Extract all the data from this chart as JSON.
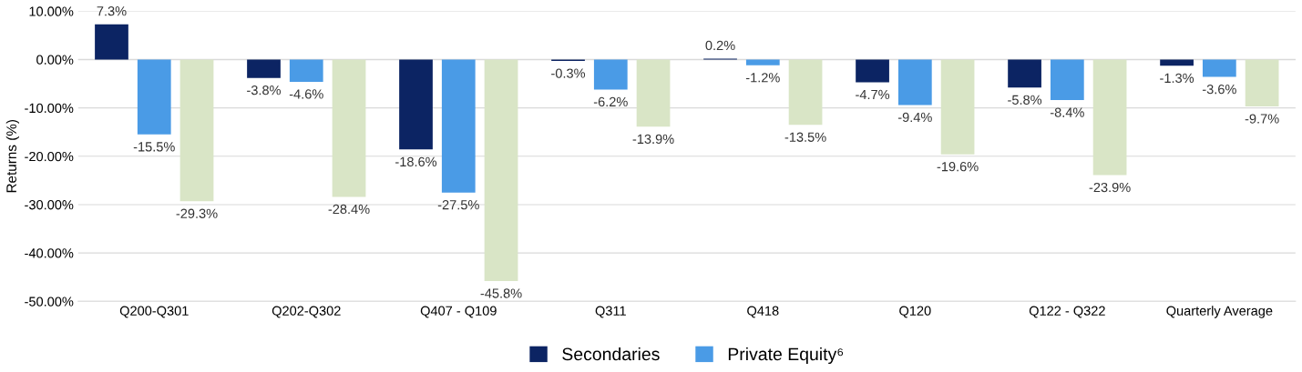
{
  "chart_data": {
    "type": "bar",
    "ylabel": "Returns (%)",
    "categories": [
      "Q200-Q301",
      "Q202-Q302",
      "Q407 - Q109",
      "Q311",
      "Q418",
      "Q120",
      "Q122 - Q322",
      "Quarterly Average"
    ],
    "series": [
      {
        "name": "Secondaries",
        "color": "#0c2463",
        "values": [
          7.3,
          -3.8,
          -18.6,
          -0.3,
          0.2,
          -4.7,
          -5.8,
          -1.3
        ],
        "value_labels": [
          "7.3%",
          "-3.8%",
          "-18.6%",
          "-0.3%",
          "0.2%",
          "-4.7%",
          "-5.8%",
          "-1.3%"
        ]
      },
      {
        "name": "Private Equity⁶",
        "color": "#4a9be6",
        "values": [
          -15.5,
          -4.6,
          -27.5,
          -6.2,
          -1.2,
          -9.4,
          -8.4,
          -3.6
        ],
        "value_labels": [
          "-15.5%",
          "-4.6%",
          "-27.5%",
          "-6.2%",
          "-1.2%",
          "-9.4%",
          "-8.4%",
          "-3.6%"
        ]
      },
      {
        "color": "#d9e5c6",
        "values": [
          -29.3,
          -28.4,
          -45.8,
          -13.9,
          -13.5,
          -19.6,
          -23.9,
          -9.7
        ],
        "value_labels": [
          "-29.3%",
          "-28.4%",
          "-45.8%",
          "-13.9%",
          "-13.5%",
          "-19.6%",
          "-23.9%",
          "-9.7%"
        ]
      }
    ],
    "ylim": [
      -50,
      10
    ],
    "yticks": [
      {
        "value": -50,
        "label": "-50.00%"
      },
      {
        "value": -40,
        "label": "-40.00%"
      },
      {
        "value": -30,
        "label": "-30.00%"
      },
      {
        "value": -20,
        "label": "-20.00%"
      },
      {
        "value": -10,
        "label": "-10.00%"
      },
      {
        "value": 0,
        "label": "0.00%"
      },
      {
        "value": 10,
        "label": "10.00%"
      }
    ],
    "grid": "y",
    "legend": "bottom"
  }
}
